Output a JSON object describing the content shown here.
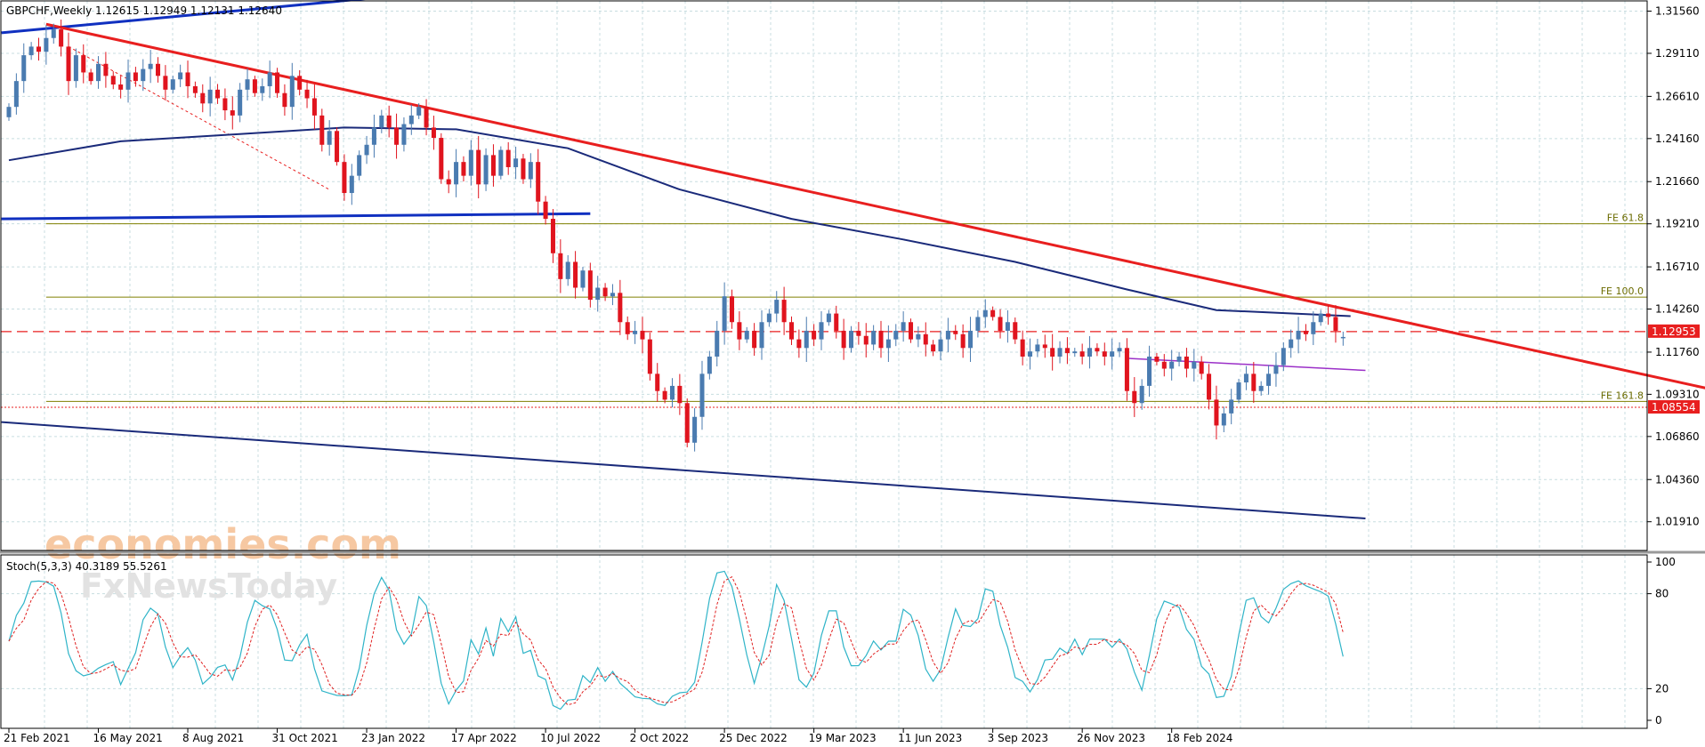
{
  "header": {
    "symbol_line": "GBPCHF,Weekly  1.12615 1.12949 1.12131 1.12640",
    "osc_line": "Stoch(5,3,3) 40.3189 55.5261"
  },
  "watermark": {
    "brand": "economies.com",
    "sub": "FxNewsToday"
  },
  "colors": {
    "bull": "#4a7bb0",
    "bear": "#e0141e",
    "ma": "#1a2a7a",
    "channel": "#1030c0",
    "trend": "#e81f1f",
    "fe": "#808000",
    "grid": "#c8dde0",
    "stoch_main": "#2fb4c8",
    "stoch_signal": "#e02020"
  },
  "chart_data": {
    "type": "candlestick",
    "symbol": "GBPCHF",
    "timeframe": "Weekly",
    "last_bar": {
      "open": 1.12615,
      "high": 1.12949,
      "low": 1.12131,
      "close": 1.1264
    },
    "price_axis": {
      "range": [
        1.005,
        1.32
      ],
      "ticks": [
        "1.31560",
        "1.29110",
        "1.26610",
        "1.24160",
        "1.21660",
        "1.19210",
        "1.16710",
        "1.14260",
        "1.11760",
        "1.09310",
        "1.06860",
        "1.04360",
        "1.01910"
      ]
    },
    "date_axis": {
      "start": "2021-02-21",
      "end": "2025-04-27",
      "ticks": [
        {
          "date": "2021-02-21",
          "label": "21 Feb 2021"
        },
        {
          "date": "2021-05-16",
          "label": "16 May 2021"
        },
        {
          "date": "2021-08-08",
          "label": "8 Aug 2021"
        },
        {
          "date": "2021-10-31",
          "label": "31 Oct 2021"
        },
        {
          "date": "2022-01-23",
          "label": "23 Jan 2022"
        },
        {
          "date": "2022-04-17",
          "label": "17 Apr 2022"
        },
        {
          "date": "2022-07-10",
          "label": "10 Jul 2022"
        },
        {
          "date": "2022-10-02",
          "label": "2 Oct 2022"
        },
        {
          "date": "2022-12-25",
          "label": "25 Dec 2022"
        },
        {
          "date": "2023-03-19",
          "label": "19 Mar 2023"
        },
        {
          "date": "2023-06-11",
          "label": "11 Jun 2023"
        },
        {
          "date": "2023-09-03",
          "label": "3 Sep 2023"
        },
        {
          "date": "2023-11-26",
          "label": "26 Nov 2023"
        },
        {
          "date": "2024-02-18",
          "label": "18 Feb 2024"
        }
      ]
    },
    "closes": [
      1.26,
      1.275,
      1.29,
      1.295,
      1.292,
      1.3,
      1.305,
      1.295,
      1.275,
      1.29,
      1.28,
      1.275,
      1.285,
      1.278,
      1.273,
      1.27,
      1.28,
      1.275,
      1.282,
      1.285,
      1.278,
      1.27,
      1.276,
      1.28,
      1.272,
      1.268,
      1.262,
      1.27,
      1.265,
      1.258,
      1.255,
      1.27,
      1.276,
      1.268,
      1.272,
      1.28,
      1.268,
      1.26,
      1.278,
      1.27,
      1.265,
      1.255,
      1.238,
      1.246,
      1.228,
      1.21,
      1.22,
      1.232,
      1.238,
      1.248,
      1.255,
      1.248,
      1.238,
      1.25,
      1.255,
      1.26,
      1.248,
      1.242,
      1.218,
      1.215,
      1.228,
      1.22,
      1.235,
      1.215,
      1.232,
      1.22,
      1.235,
      1.225,
      1.23,
      1.218,
      1.228,
      1.205,
      1.195,
      1.175,
      1.16,
      1.17,
      1.155,
      1.165,
      1.148,
      1.155,
      1.15,
      1.152,
      1.135,
      1.128,
      1.13,
      1.125,
      1.105,
      1.095,
      1.09,
      1.098,
      1.088,
      1.065,
      1.08,
      1.105,
      1.115,
      1.13,
      1.15,
      1.135,
      1.125,
      1.13,
      1.12,
      1.135,
      1.14,
      1.148,
      1.135,
      1.125,
      1.12,
      1.13,
      1.125,
      1.135,
      1.14,
      1.13,
      1.12,
      1.13,
      1.127,
      1.122,
      1.13,
      1.12,
      1.125,
      1.13,
      1.135,
      1.125,
      1.128,
      1.122,
      1.118,
      1.125,
      1.13,
      1.128,
      1.12,
      1.13,
      1.138,
      1.142,
      1.138,
      1.13,
      1.135,
      1.125,
      1.115,
      1.118,
      1.122,
      1.12,
      1.115,
      1.12,
      1.117,
      1.118,
      1.115,
      1.12,
      1.118,
      1.115,
      1.118,
      1.12,
      1.095,
      1.088,
      1.098,
      1.115,
      1.112,
      1.108,
      1.112,
      1.115,
      1.108,
      1.112,
      1.105,
      1.09,
      1.075,
      1.082,
      1.09,
      1.1,
      1.105,
      1.095,
      1.098,
      1.105,
      1.11,
      1.12,
      1.125,
      1.13,
      1.128,
      1.135,
      1.14,
      1.138,
      1.13,
      1.1264
    ],
    "moving_average": [
      [
        0,
        1.229
      ],
      [
        15,
        1.24
      ],
      [
        30,
        1.244
      ],
      [
        45,
        1.248
      ],
      [
        60,
        1.247
      ],
      [
        75,
        1.236
      ],
      [
        90,
        1.212
      ],
      [
        105,
        1.195
      ],
      [
        120,
        1.183
      ],
      [
        135,
        1.17
      ],
      [
        150,
        1.154
      ],
      [
        162,
        1.142
      ],
      [
        180,
        1.1385
      ]
    ],
    "lines": [
      {
        "name": "channel_upper",
        "points": [
          [
            -1,
            1.303
          ],
          [
            63,
            1.329
          ]
        ]
      },
      {
        "name": "channel_lower",
        "points": [
          [
            -1,
            1.195
          ],
          [
            78,
            1.198
          ]
        ]
      },
      {
        "name": "lower_support",
        "points": [
          [
            -1,
            1.077
          ],
          [
            182,
            1.021
          ]
        ]
      },
      {
        "name": "downtrend",
        "points": [
          [
            5,
            1.308
          ],
          [
            240,
            1.085
          ]
        ]
      },
      {
        "name": "short_res",
        "points": [
          [
            150,
            1.114
          ],
          [
            182,
            1.107
          ]
        ]
      },
      {
        "name": "diag_dashed",
        "points": [
          [
            8,
            1.295
          ],
          [
            43,
            1.212
          ]
        ]
      }
    ],
    "levels": [
      {
        "label": "FE 61.8",
        "price": 1.1921,
        "start_index": 5
      },
      {
        "label": "FE 100.0",
        "price": 1.1495,
        "start_index": 5
      },
      {
        "label": "FE 161.8",
        "price": 1.089,
        "start_index": 5
      },
      {
        "label": "1.12953",
        "price": 1.12953,
        "style": "dashed",
        "tag_color": "#e81f1f"
      },
      {
        "label": "1.08554",
        "price": 1.08554,
        "style": "dotted",
        "tag_color": "#e81f1f"
      }
    ],
    "stochastic": {
      "name": "Stoch(5,3,3)",
      "main": 40.3189,
      "signal": 55.5261,
      "axis_ticks": [
        "100",
        "80",
        "20",
        "0"
      ]
    }
  }
}
